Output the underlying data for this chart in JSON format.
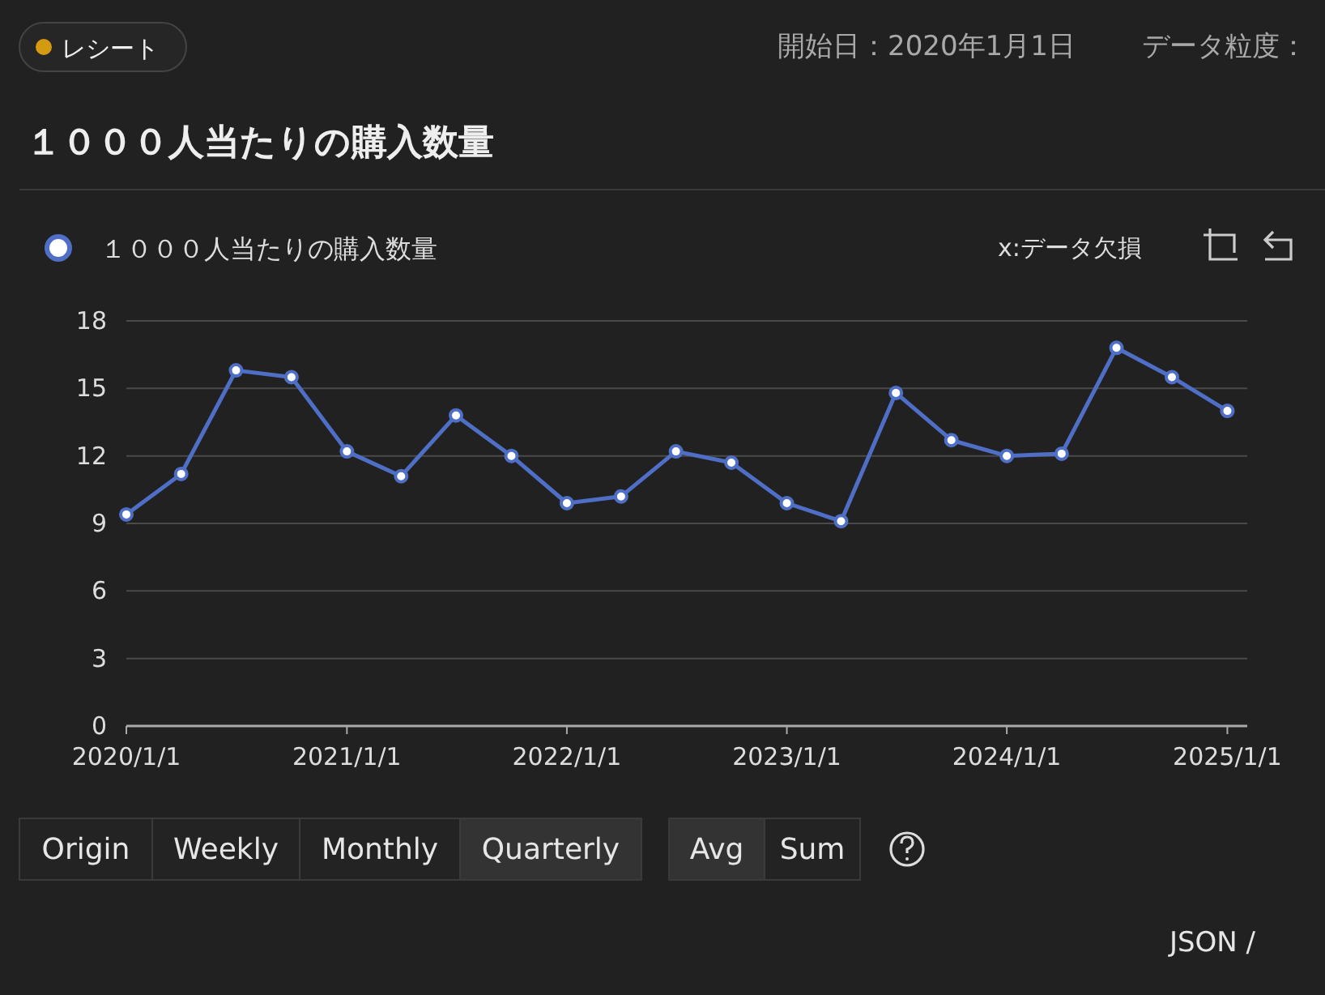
{
  "chart_data": {
    "type": "line",
    "title": "１０００人当たりの購入数量",
    "annotations": [
      "レシート",
      "開始日：2020年1月1日",
      "データ粒度：",
      "x:データ欠損",
      "Origin",
      "Weekly",
      "Monthly",
      "Quarterly",
      "Avg",
      "Sum",
      "JSON /"
    ],
    "x": [
      "2020-01-01",
      "2020-04-01",
      "2020-07-01",
      "2020-10-01",
      "2021-01-01",
      "2021-04-01",
      "2021-07-01",
      "2021-10-01",
      "2022-01-01",
      "2022-04-01",
      "2022-07-01",
      "2022-10-01",
      "2023-01-01",
      "2023-04-01",
      "2023-07-01",
      "2023-10-01",
      "2024-01-01",
      "2024-04-01",
      "2024-07-01",
      "2024-10-01",
      "2025-01-01"
    ],
    "series": [
      {
        "name": "１０００人当たりの購入数量",
        "color": "#4f6fc6",
        "values": [
          9.4,
          11.2,
          15.8,
          15.5,
          12.2,
          11.1,
          13.8,
          12.0,
          9.9,
          10.2,
          12.2,
          11.7,
          9.9,
          9.1,
          14.8,
          12.7,
          12.0,
          12.1,
          16.8,
          15.5,
          14.0
        ]
      }
    ],
    "xlim": [
      "2020-01-01",
      "2025-02-03"
    ],
    "xticks": [
      {
        "value": "2020-01-01",
        "label": "2020/1/1"
      },
      {
        "value": "2021-01-01",
        "label": "2021/1/1"
      },
      {
        "value": "2022-01-01",
        "label": "2022/1/1"
      },
      {
        "value": "2023-01-01",
        "label": "2023/1/1"
      },
      {
        "value": "2024-01-01",
        "label": "2024/1/1"
      },
      {
        "value": "2025-01-01",
        "label": "2025/1/1"
      }
    ],
    "ylim": [
      0,
      18
    ],
    "yticks": [
      0,
      3,
      6,
      9,
      12,
      15,
      18
    ],
    "grid": "y",
    "legend": "top left",
    "marker": "circle",
    "line_style": "solid"
  }
}
